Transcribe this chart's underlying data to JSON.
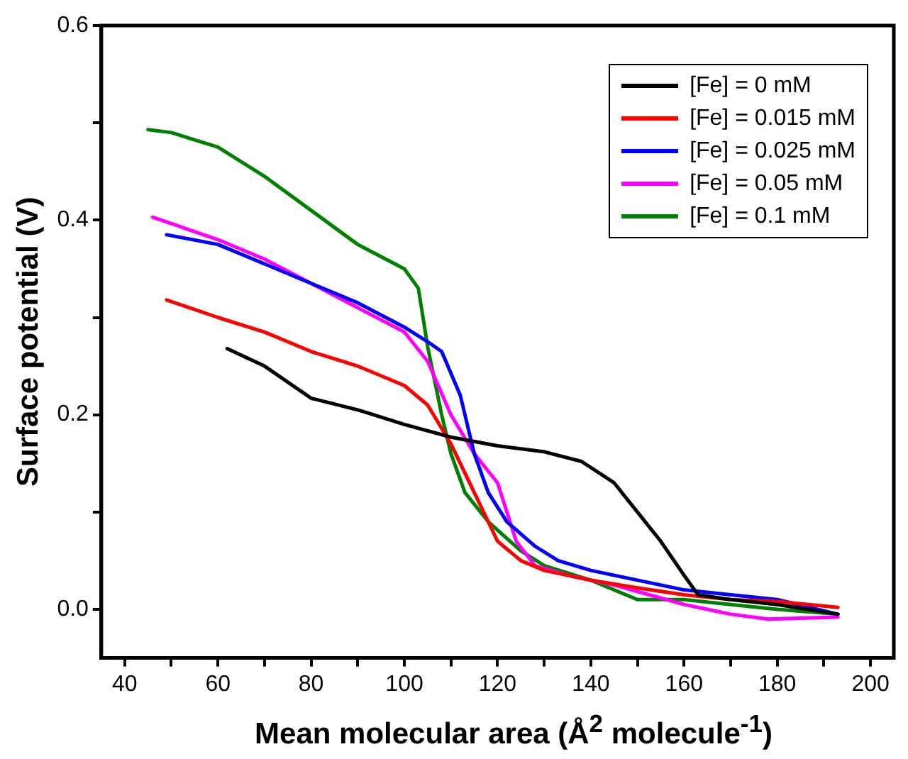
{
  "chart_data": {
    "type": "line",
    "xlabel": "Mean molecular area (Å$^{2}$ molecule$^{-1}$)",
    "ylabel": "Surface potential (V)",
    "xlim": [
      35,
      205
    ],
    "ylim": [
      -0.05,
      0.6
    ],
    "xticks": [
      40,
      {
        "value": 50,
        "label": null
      },
      60,
      {
        "value": 70,
        "label": null
      },
      80,
      {
        "value": 90,
        "label": null
      },
      100,
      {
        "value": 110,
        "label": null
      },
      120,
      {
        "value": 130,
        "label": null
      },
      140,
      {
        "value": 150,
        "label": null
      },
      160,
      {
        "value": 170,
        "label": null
      },
      180,
      {
        "value": 190,
        "label": null
      },
      200
    ],
    "yticks": [
      {
        "value": 0,
        "label": "0.0"
      },
      {
        "value": 0.1,
        "label": null
      },
      0.2,
      {
        "value": 0.3,
        "label": null
      },
      0.4,
      {
        "value": 0.5,
        "label": null
      },
      0.6
    ],
    "grid": false,
    "legend": "top right",
    "marker": "none",
    "line_style": "solid",
    "series": [
      {
        "name": "[Fe] = 0 mM",
        "color": "#000000",
        "x": [
          62,
          70,
          80,
          90,
          100,
          110,
          120,
          130,
          138,
          145,
          150,
          155,
          160,
          163,
          170,
          180,
          193
        ],
        "values": [
          0.268,
          0.25,
          0.217,
          0.205,
          0.19,
          0.177,
          0.168,
          0.162,
          0.152,
          0.13,
          0.1,
          0.07,
          0.035,
          0.015,
          0.01,
          0.005,
          -0.005
        ]
      },
      {
        "name": "[Fe] = 0.015 mM",
        "color": "#ff0000",
        "x": [
          49,
          60,
          70,
          80,
          90,
          100,
          105,
          110,
          115,
          120,
          125,
          130,
          140,
          150,
          160,
          170,
          180,
          193
        ],
        "values": [
          0.318,
          0.3,
          0.285,
          0.265,
          0.25,
          0.23,
          0.21,
          0.17,
          0.12,
          0.07,
          0.05,
          0.04,
          0.03,
          0.022,
          0.015,
          0.01,
          0.008,
          0.002
        ]
      },
      {
        "name": "[Fe] = 0.025 mM",
        "color": "#0000ff",
        "x": [
          49,
          60,
          70,
          80,
          90,
          100,
          105,
          108,
          112,
          115,
          118,
          122,
          128,
          133,
          140,
          150,
          160,
          170,
          180,
          193
        ],
        "values": [
          0.385,
          0.375,
          0.355,
          0.335,
          0.315,
          0.29,
          0.275,
          0.265,
          0.22,
          0.16,
          0.12,
          0.09,
          0.065,
          0.05,
          0.04,
          0.03,
          0.02,
          0.015,
          0.01,
          -0.005
        ]
      },
      {
        "name": "[Fe] = 0.05 mM",
        "color": "#ff00ff",
        "x": [
          46,
          60,
          70,
          80,
          90,
          100,
          105,
          110,
          115,
          120,
          124,
          128,
          135,
          145,
          160,
          170,
          178,
          193
        ],
        "values": [
          0.403,
          0.38,
          0.36,
          0.335,
          0.31,
          0.285,
          0.255,
          0.2,
          0.16,
          0.13,
          0.07,
          0.045,
          0.035,
          0.025,
          0.005,
          -0.005,
          -0.01,
          -0.008
        ]
      },
      {
        "name": "[Fe] = 0.1 mM",
        "color": "#008000",
        "x": [
          45,
          50,
          60,
          70,
          80,
          90,
          100,
          103,
          105,
          108,
          110,
          113,
          118,
          125,
          130,
          140,
          150,
          160,
          170,
          180,
          193
        ],
        "values": [
          0.493,
          0.49,
          0.475,
          0.445,
          0.41,
          0.375,
          0.35,
          0.33,
          0.27,
          0.2,
          0.16,
          0.12,
          0.09,
          0.06,
          0.045,
          0.03,
          0.01,
          0.01,
          0.005,
          0,
          -0.005
        ]
      }
    ]
  }
}
